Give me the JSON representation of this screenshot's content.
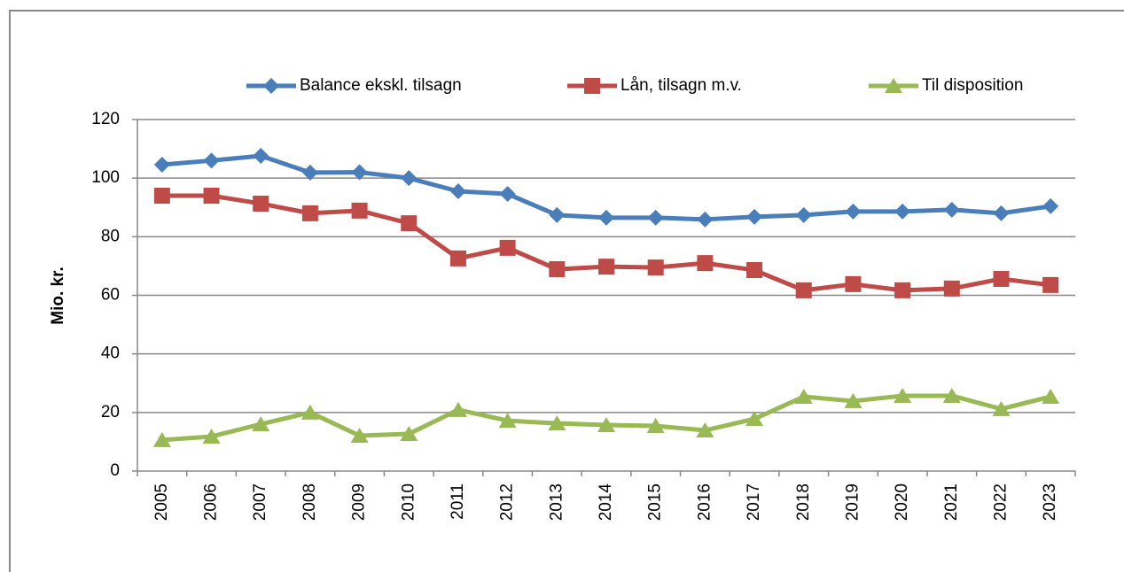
{
  "chart_data": {
    "type": "line",
    "y_label": "Mio. kr.",
    "categories": [
      "2005",
      "2006",
      "2007",
      "2008",
      "2009",
      "2010",
      "2011",
      "2012",
      "2013",
      "2014",
      "2015",
      "2016",
      "2017",
      "2018",
      "2019",
      "2020",
      "2021",
      "2022",
      "2023"
    ],
    "series": [
      {
        "name": "Balance ekskl. tilsagn",
        "color": "#4a7ebb",
        "marker": "diamond",
        "values": [
          104.6,
          106,
          107.6,
          101.9,
          102,
          100,
          95.5,
          94.6,
          87.4,
          86.5,
          86.5,
          85.9,
          86.8,
          87.4,
          88.6,
          88.6,
          89.2,
          88,
          90.4
        ]
      },
      {
        "name": "Lån, tilsagn m.v.",
        "color": "#be4b48",
        "marker": "square",
        "values": [
          94,
          94,
          91.3,
          88,
          88.9,
          84.6,
          72.6,
          76.2,
          68.9,
          69.8,
          69.5,
          71,
          68.6,
          61.7,
          63.8,
          61.7,
          62.3,
          65.6,
          63.5
        ]
      },
      {
        "name": "Til disposition",
        "color": "#98b954",
        "marker": "triangle",
        "values": [
          10.6,
          11.8,
          16,
          20,
          12.1,
          12.7,
          20.9,
          17.2,
          16.3,
          15.7,
          15.4,
          13.9,
          17.8,
          25.4,
          23.9,
          25.7,
          25.7,
          21.2,
          25.4
        ]
      }
    ],
    "ylim": [
      0,
      120
    ],
    "yticks": [
      0,
      20,
      40,
      60,
      80,
      100,
      120
    ],
    "grid": true,
    "legend": "top"
  }
}
